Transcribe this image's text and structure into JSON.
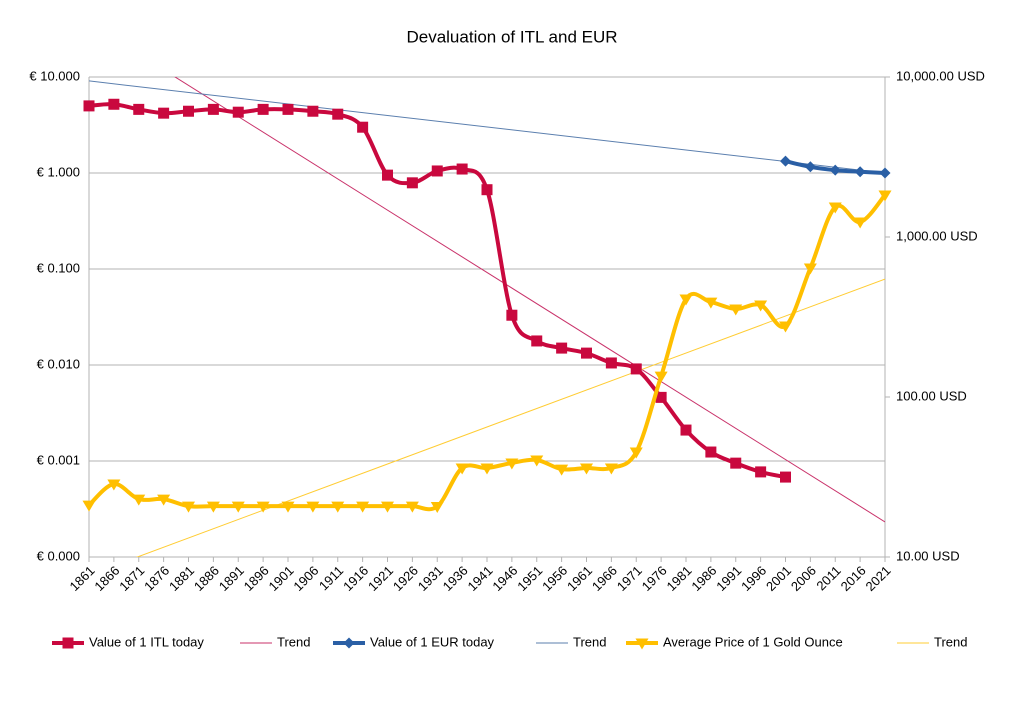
{
  "chart_data": {
    "type": "line",
    "title": "Devaluation of ITL and EUR",
    "categories": [
      "1861",
      "1866",
      "1871",
      "1876",
      "1881",
      "1886",
      "1891",
      "1896",
      "1901",
      "1906",
      "1911",
      "1916",
      "1921",
      "1926",
      "1931",
      "1936",
      "1941",
      "1946",
      "1951",
      "1956",
      "1961",
      "1966",
      "1971",
      "1976",
      "1981",
      "1986",
      "1991",
      "1996",
      "2001",
      "2006",
      "2011",
      "2016",
      "2021"
    ],
    "log_scale": true,
    "grid": true,
    "legend": "bottom",
    "smooth": true,
    "ylim": [
      0.0001,
      10
    ],
    "yticks": [
      {
        "value": 10,
        "label": "€ 10.000"
      },
      {
        "value": 1,
        "label": "€ 1.000"
      },
      {
        "value": 0.1,
        "label": "€ 0.100"
      },
      {
        "value": 0.01,
        "label": "€ 0.010"
      },
      {
        "value": 0.001,
        "label": "€ 0.001"
      },
      {
        "value": 0.0001,
        "label": "€ 0.000"
      }
    ],
    "y2lim": [
      10,
      10000
    ],
    "y2ticks": [
      {
        "value": 10000,
        "label": "10,000.00 USD"
      },
      {
        "value": 1000,
        "label": "1,000.00 USD"
      },
      {
        "value": 100,
        "label": "100.00 USD"
      },
      {
        "value": 10,
        "label": "10.00 USD"
      }
    ],
    "series": [
      {
        "name": "Value of 1 ITL today",
        "color": "#c9083e",
        "marker": "square",
        "axis": "y",
        "values": [
          5.0,
          5.2,
          4.6,
          4.2,
          4.4,
          4.6,
          4.3,
          4.6,
          4.6,
          4.4,
          4.1,
          3.0,
          0.95,
          0.79,
          1.05,
          1.1,
          0.67,
          0.033,
          0.0178,
          0.015,
          0.0133,
          0.0105,
          0.0091,
          0.0046,
          0.0021,
          0.00124,
          0.00095,
          0.00077,
          0.00068,
          null,
          null,
          null,
          null
        ]
      },
      {
        "name": "Trend",
        "color": "#c9326a",
        "trend": true,
        "axis": "y",
        "endpoints": [
          36.5,
          0.000232
        ]
      },
      {
        "name": "Value of 1 EUR today",
        "color": "#2a5fa5",
        "marker": "diamond",
        "axis": "y",
        "values": [
          null,
          null,
          null,
          null,
          null,
          null,
          null,
          null,
          null,
          null,
          null,
          null,
          null,
          null,
          null,
          null,
          null,
          null,
          null,
          null,
          null,
          null,
          null,
          null,
          null,
          null,
          null,
          null,
          1.33,
          1.16,
          1.07,
          1.03,
          1.0
        ]
      },
      {
        "name": "Trend",
        "color": "#5b7fae",
        "trend": true,
        "axis": "y",
        "endpoints": [
          9.1,
          1.0
        ]
      },
      {
        "name": "Average Price of 1 Gold Ounce",
        "color": "#ffbf00",
        "marker": "triangle-down",
        "axis": "y2",
        "values": [
          21.1,
          28.6,
          23.0,
          23.0,
          20.8,
          20.8,
          20.8,
          20.8,
          20.8,
          20.8,
          20.8,
          20.8,
          20.8,
          20.8,
          20.7,
          36.0,
          36.0,
          38.7,
          40.4,
          35.4,
          36.0,
          36.0,
          45.3,
          135,
          410,
          392,
          355,
          376,
          278,
          640,
          1540,
          1240,
          1830
        ]
      },
      {
        "name": "Trend",
        "color": "#ffcc33",
        "trend": true,
        "axis": "y2",
        "endpoints": [
          7.72,
          546
        ]
      }
    ]
  }
}
